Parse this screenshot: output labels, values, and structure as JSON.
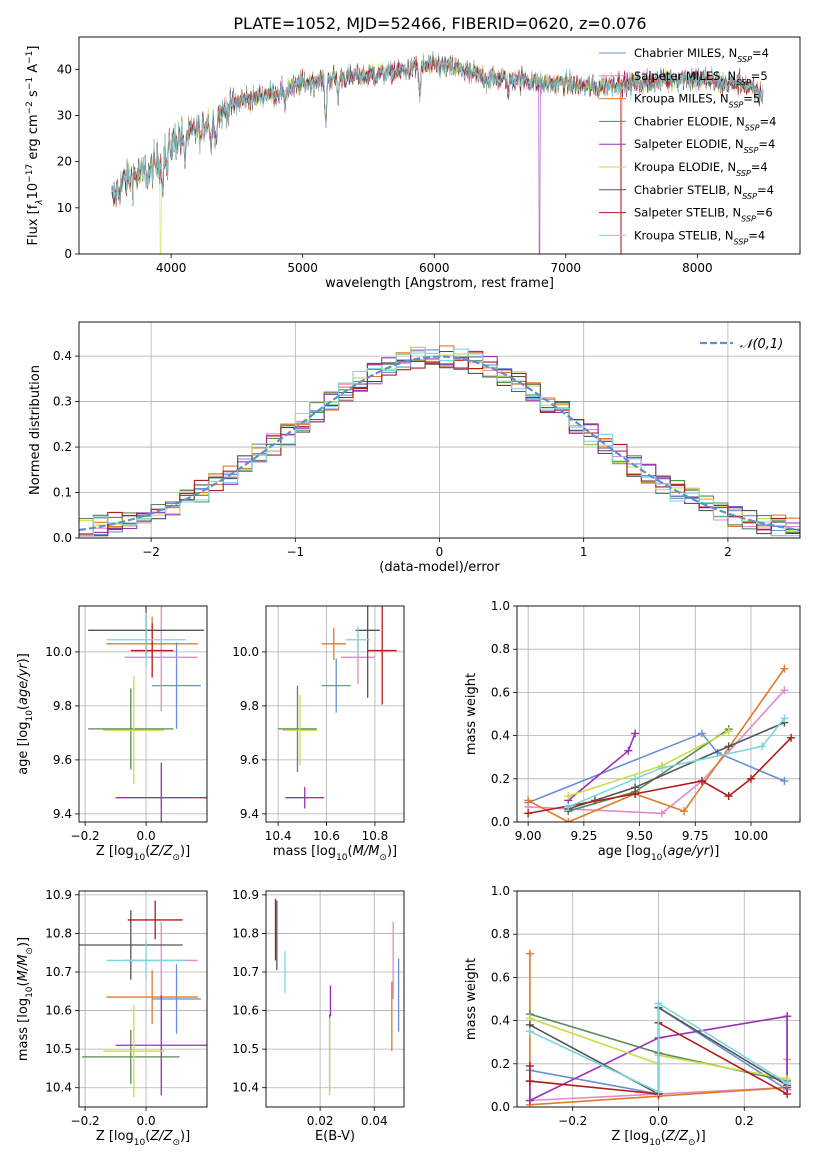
{
  "figure": {
    "title": "PLATE=1052, MJD=52466, FIBERID=0620, z=0.076"
  },
  "palette": {
    "Chabrier MILES": "#6b8fd6",
    "Salpeter MILES": "#e38ac8",
    "Kroupa MILES": "#e07b28",
    "Chabrier ELODIE": "#5a8a5a",
    "Salpeter ELODIE": "#9b30b8",
    "Kroupa ELODIE": "#c7de4a",
    "Chabrier STELIB": "#555555",
    "Salpeter STELIB": "#b01c1c",
    "Kroupa STELIB": "#7dd6de",
    "normal": "#5b8fd6",
    "grid": "#b0b0b0"
  },
  "chart_data": [
    {
      "id": "spectrum",
      "type": "line",
      "xlabel": "wavelength [Angstrom, rest frame]",
      "ylabel_parts": [
        "Flux [f",
        "λ",
        "10",
        "−17",
        " erg cm",
        "−2",
        " s",
        "−1",
        " A",
        "−1",
        "]"
      ],
      "xlim": [
        3300,
        8780
      ],
      "ylim": [
        0,
        47
      ],
      "xticks": [
        4000,
        5000,
        6000,
        7000,
        8000
      ],
      "yticks": [
        0,
        10,
        20,
        30,
        40
      ],
      "grid": false,
      "legend_position": "right",
      "continuum": [
        [
          3550,
          12
        ],
        [
          3650,
          16
        ],
        [
          3750,
          17
        ],
        [
          3850,
          18
        ],
        [
          3950,
          22
        ],
        [
          4050,
          25
        ],
        [
          4200,
          27
        ],
        [
          4350,
          30
        ],
        [
          4500,
          33
        ],
        [
          4650,
          34
        ],
        [
          4800,
          35
        ],
        [
          5000,
          37
        ],
        [
          5200,
          38
        ],
        [
          5400,
          38.5
        ],
        [
          5600,
          39
        ],
        [
          5800,
          40
        ],
        [
          6000,
          41
        ],
        [
          6200,
          40
        ],
        [
          6400,
          38
        ],
        [
          6600,
          38
        ],
        [
          6800,
          37
        ],
        [
          7000,
          37
        ],
        [
          7200,
          36
        ],
        [
          7400,
          37
        ],
        [
          7600,
          37
        ],
        [
          7800,
          38
        ],
        [
          8000,
          38
        ],
        [
          8200,
          37
        ],
        [
          8350,
          37
        ],
        [
          8450,
          35
        ],
        [
          8500,
          34
        ]
      ],
      "absorption": [
        [
          3934,
          6
        ],
        [
          3969,
          5
        ],
        [
          4102,
          6
        ],
        [
          4227,
          3
        ],
        [
          4304,
          6
        ],
        [
          4340,
          5
        ],
        [
          4861,
          4
        ],
        [
          5175,
          10
        ],
        [
          5270,
          4
        ],
        [
          5890,
          6
        ],
        [
          6563,
          3
        ]
      ],
      "dropouts": [
        [
          3920,
          "Kroupa ELODIE"
        ],
        [
          6800,
          "Salpeter ELODIE"
        ],
        [
          7420,
          "Salpeter STELIB"
        ]
      ],
      "series": [
        {
          "name": "Chabrier MILES",
          "label": "Chabrier MILES, N",
          "sub": "SSP",
          "n": "=4"
        },
        {
          "name": "Salpeter MILES",
          "label": "Salpeter MILES, N",
          "sub": "SSP",
          "n": "=5"
        },
        {
          "name": "Kroupa MILES",
          "label": "Kroupa MILES, N",
          "sub": "SSP",
          "n": "=5"
        },
        {
          "name": "Chabrier ELODIE",
          "label": "Chabrier ELODIE, N",
          "sub": "SSP",
          "n": "=4"
        },
        {
          "name": "Salpeter ELODIE",
          "label": "Salpeter ELODIE, N",
          "sub": "SSP",
          "n": "=4"
        },
        {
          "name": "Kroupa ELODIE",
          "label": "Kroupa ELODIE, N",
          "sub": "SSP",
          "n": "=4"
        },
        {
          "name": "Chabrier STELIB",
          "label": "Chabrier STELIB, N",
          "sub": "SSP",
          "n": "=4"
        },
        {
          "name": "Salpeter STELIB",
          "label": "Salpeter STELIB, N",
          "sub": "SSP",
          "n": "=6"
        },
        {
          "name": "Kroupa STELIB",
          "label": "Kroupa STELIB, N",
          "sub": "SSP",
          "n": "=4"
        }
      ]
    },
    {
      "id": "residuals",
      "type": "line",
      "xlabel": "(data-model)/error",
      "ylabel": "Normed distribution",
      "xlim": [
        -2.5,
        2.5
      ],
      "ylim": [
        0,
        0.475
      ],
      "xticks": [
        -2,
        -1,
        0,
        1,
        2
      ],
      "yticks": [
        0.0,
        0.1,
        0.2,
        0.3,
        0.4
      ],
      "grid": true,
      "legend": "𝒩(0,1)",
      "legend_position": "top-right",
      "bin_width": 0.1,
      "bin_start": -2.5
    },
    {
      "id": "age-vs-Z",
      "type": "scatter",
      "xlabel": "Z [log10(Z/Z⊙)]",
      "ylabel": "age  [log10(age/yr)]",
      "xlim": [
        -0.22,
        0.2
      ],
      "ylim": [
        9.37,
        10.17
      ],
      "xticks": [
        -0.2,
        0.0
      ],
      "yticks": [
        9.4,
        9.6,
        9.8,
        10.0
      ],
      "grid": true,
      "points": [
        {
          "series": "Chabrier MILES",
          "x": 0.1,
          "xerr": 0.08,
          "y": 9.875,
          "yerr": 0.16
        },
        {
          "series": "Salpeter MILES",
          "x": 0.05,
          "xerr": 0.12,
          "y": 9.98,
          "yerr": 0.2
        },
        {
          "series": "Kroupa MILES",
          "x": 0.02,
          "xerr": 0.15,
          "y": 10.03,
          "yerr": 0.1
        },
        {
          "series": "Chabrier ELODIE",
          "x": -0.05,
          "xerr": 0.14,
          "y": 9.715,
          "yerr": 0.15
        },
        {
          "series": "Salpeter ELODIE",
          "x": 0.05,
          "xerr": 0.15,
          "y": 9.46,
          "yerr": 0.13
        },
        {
          "series": "Kroupa ELODIE",
          "x": -0.04,
          "xerr": 0.1,
          "y": 9.71,
          "yerr": 0.2
        },
        {
          "series": "Chabrier STELIB",
          "x": 0.0,
          "xerr": 0.19,
          "y": 10.08,
          "yerr": 0.1
        },
        {
          "series": "Salpeter STELIB",
          "x": 0.02,
          "xerr": 0.07,
          "y": 10.005,
          "yerr": 0.1
        },
        {
          "series": "Kroupa STELIB",
          "x": 0.0,
          "xerr": 0.13,
          "y": 10.045,
          "yerr": 0.1
        }
      ]
    },
    {
      "id": "age-vs-mass",
      "type": "scatter",
      "xlabel": "mass [log10(M/M⊙)]",
      "ylabel": "",
      "xlim": [
        10.35,
        10.92
      ],
      "ylim": [
        9.37,
        10.17
      ],
      "xticks": [
        10.4,
        10.6,
        10.8
      ],
      "yticks": [
        9.4,
        9.6,
        9.8,
        10.0
      ],
      "grid": true,
      "points": [
        {
          "series": "Chabrier MILES",
          "x": 10.64,
          "xerr": 0.06,
          "y": 9.875,
          "yerr": 0.1
        },
        {
          "series": "Salpeter MILES",
          "x": 10.73,
          "xerr": 0.07,
          "y": 9.98,
          "yerr": 0.1
        },
        {
          "series": "Kroupa MILES",
          "x": 10.63,
          "xerr": 0.05,
          "y": 10.03,
          "yerr": 0.06
        },
        {
          "series": "Chabrier ELODIE",
          "x": 10.48,
          "xerr": 0.08,
          "y": 9.715,
          "yerr": 0.16
        },
        {
          "series": "Salpeter ELODIE",
          "x": 10.51,
          "xerr": 0.08,
          "y": 9.46,
          "yerr": 0.04
        },
        {
          "series": "Kroupa ELODIE",
          "x": 10.49,
          "xerr": 0.07,
          "y": 9.71,
          "yerr": 0.13
        },
        {
          "series": "Chabrier STELIB",
          "x": 10.77,
          "xerr": 0.05,
          "y": 10.08,
          "yerr": 0.25
        },
        {
          "series": "Salpeter STELIB",
          "x": 10.83,
          "xerr": 0.06,
          "y": 10.005,
          "yerr": 0.2
        },
        {
          "series": "Kroupa STELIB",
          "x": 10.73,
          "xerr": 0.05,
          "y": 10.045,
          "yerr": 0.05
        }
      ]
    },
    {
      "id": "weight-vs-age",
      "type": "line",
      "xlabel": "age  [log10(age/yr)]",
      "ylabel": "mass weight",
      "xlim": [
        8.95,
        10.22
      ],
      "ylim": [
        0,
        1
      ],
      "xticks": [
        9.0,
        9.25,
        9.5,
        9.75,
        10.0
      ],
      "yticks": [
        0.0,
        0.2,
        0.4,
        0.6,
        0.8,
        1.0
      ],
      "grid": true,
      "series": [
        {
          "name": "Chabrier MILES",
          "points": [
            [
              9.0,
              0.09
            ],
            [
              9.78,
              0.41
            ],
            [
              9.85,
              0.32
            ],
            [
              10.15,
              0.19
            ]
          ]
        },
        {
          "name": "Salpeter MILES",
          "points": [
            [
              9.0,
              0.07
            ],
            [
              9.6,
              0.04
            ],
            [
              9.78,
              0.19
            ],
            [
              10.15,
              0.61
            ]
          ]
        },
        {
          "name": "Kroupa MILES",
          "points": [
            [
              9.0,
              0.1
            ],
            [
              9.18,
              0.0
            ],
            [
              9.48,
              0.13
            ],
            [
              9.7,
              0.05
            ],
            [
              10.15,
              0.71
            ]
          ]
        },
        {
          "name": "Chabrier ELODIE",
          "points": [
            [
              9.18,
              0.05
            ],
            [
              9.48,
              0.14
            ],
            [
              9.9,
              0.43
            ]
          ]
        },
        {
          "name": "Salpeter ELODIE",
          "points": [
            [
              9.18,
              0.1
            ],
            [
              9.45,
              0.33
            ],
            [
              9.48,
              0.41
            ]
          ]
        },
        {
          "name": "Kroupa ELODIE",
          "points": [
            [
              9.18,
              0.12
            ],
            [
              9.6,
              0.26
            ],
            [
              9.9,
              0.42
            ]
          ]
        },
        {
          "name": "Chabrier STELIB",
          "points": [
            [
              9.18,
              0.06
            ],
            [
              9.3,
              0.1
            ],
            [
              9.48,
              0.16
            ],
            [
              9.9,
              0.35
            ],
            [
              10.15,
              0.46
            ]
          ]
        },
        {
          "name": "Salpeter STELIB",
          "points": [
            [
              9.0,
              0.04
            ],
            [
              9.48,
              0.13
            ],
            [
              9.78,
              0.19
            ],
            [
              9.9,
              0.12
            ],
            [
              10.0,
              0.2
            ],
            [
              10.18,
              0.39
            ]
          ]
        },
        {
          "name": "Kroupa STELIB",
          "points": [
            [
              9.18,
              0.07
            ],
            [
              9.48,
              0.2
            ],
            [
              9.6,
              0.25
            ],
            [
              10.05,
              0.35
            ],
            [
              10.15,
              0.48
            ]
          ]
        }
      ]
    },
    {
      "id": "mass-vs-Z",
      "type": "scatter",
      "xlabel": "Z [log10(Z/Z⊙)]",
      "ylabel": "mass [log10(M/M⊙)]",
      "xlim": [
        -0.22,
        0.2
      ],
      "ylim": [
        10.35,
        10.91
      ],
      "xticks": [
        -0.2,
        0.0
      ],
      "yticks": [
        10.4,
        10.5,
        10.6,
        10.7,
        10.8,
        10.9
      ],
      "grid": true,
      "points": [
        {
          "series": "Chabrier MILES",
          "x": 0.1,
          "xerr": 0.08,
          "y": 10.63,
          "yerr": 0.09
        },
        {
          "series": "Salpeter MILES",
          "x": 0.05,
          "xerr": 0.12,
          "y": 10.73,
          "yerr": 0.1
        },
        {
          "series": "Kroupa MILES",
          "x": 0.02,
          "xerr": 0.15,
          "y": 10.635,
          "yerr": 0.07
        },
        {
          "series": "Chabrier ELODIE",
          "x": -0.05,
          "xerr": 0.16,
          "y": 10.48,
          "yerr": 0.07
        },
        {
          "series": "Salpeter ELODIE",
          "x": 0.05,
          "xerr": 0.15,
          "y": 10.51,
          "yerr": 0.13
        },
        {
          "series": "Kroupa ELODIE",
          "x": -0.04,
          "xerr": 0.1,
          "y": 10.495,
          "yerr": 0.12
        },
        {
          "series": "Chabrier STELIB",
          "x": -0.05,
          "xerr": 0.17,
          "y": 10.77,
          "yerr": 0.09
        },
        {
          "series": "Salpeter STELIB",
          "x": 0.03,
          "xerr": 0.09,
          "y": 10.835,
          "yerr": 0.05
        },
        {
          "series": "Kroupa STELIB",
          "x": 0.0,
          "xerr": 0.13,
          "y": 10.73,
          "yerr": 0.05
        }
      ]
    },
    {
      "id": "mass-vs-ebv",
      "type": "scatter",
      "xlabel": "E(B-V)",
      "ylabel": "",
      "xlim": [
        0.0,
        0.051
      ],
      "ylim": [
        10.35,
        10.91
      ],
      "xticks": [
        0.02,
        0.04
      ],
      "yticks": [
        10.4,
        10.5,
        10.6,
        10.7,
        10.8,
        10.9
      ],
      "grid": true,
      "points": [
        {
          "series": "Chabrier MILES",
          "x": 0.049,
          "y": 10.64,
          "yerr": 0.095
        },
        {
          "series": "Salpeter MILES",
          "x": 0.047,
          "y": 10.73,
          "yerr": 0.1
        },
        {
          "series": "Kroupa MILES",
          "x": 0.0465,
          "y": 10.585,
          "yerr": 0.09
        },
        {
          "series": "Chabrier ELODIE",
          "x": 0.0235,
          "y": 10.49,
          "yerr": 0.1
        },
        {
          "series": "Salpeter ELODIE",
          "x": 0.0238,
          "y": 10.625,
          "yerr": 0.04
        },
        {
          "series": "Kroupa ELODIE",
          "x": 0.0235,
          "y": 10.48,
          "yerr": 0.1
        },
        {
          "series": "Chabrier STELIB",
          "x": 0.004,
          "y": 10.795,
          "yerr": 0.09
        },
        {
          "series": "Salpeter STELIB",
          "x": 0.0035,
          "y": 10.81,
          "yerr": 0.08
        },
        {
          "series": "Kroupa STELIB",
          "x": 0.007,
          "y": 10.7,
          "yerr": 0.055
        }
      ]
    },
    {
      "id": "weight-vs-Z",
      "type": "line",
      "xlabel": "Z [log10(Z/Z⊙)]",
      "ylabel": "mass weight",
      "xlim": [
        -0.33,
        0.33
      ],
      "ylim": [
        0,
        1
      ],
      "xticks": [
        -0.2,
        0.0,
        0.2
      ],
      "yticks": [
        0.0,
        0.2,
        0.4,
        0.6,
        0.8,
        1.0
      ],
      "grid": true,
      "series": [
        {
          "name": "Chabrier MILES",
          "points": [
            [
              -0.3,
              0.17
            ],
            [
              0.0,
              0.06
            ],
            [
              0.0,
              0.46
            ],
            [
              0.3,
              0.08
            ],
            [
              0.3,
              0.42
            ],
            [
              0.3,
              0.09
            ]
          ]
        },
        {
          "name": "Salpeter MILES",
          "points": [
            [
              -0.3,
              0.03
            ],
            [
              0.3,
              0.09
            ],
            [
              0.3,
              0.22
            ],
            [
              0.3,
              0.08
            ]
          ]
        },
        {
          "name": "Kroupa MILES",
          "points": [
            [
              -0.3,
              0.71
            ],
            [
              -0.3,
              0.01
            ],
            [
              0.0,
              0.05
            ],
            [
              0.3,
              0.09
            ]
          ]
        },
        {
          "name": "Chabrier ELODIE",
          "points": [
            [
              -0.3,
              0.43
            ],
            [
              0.0,
              0.25
            ],
            [
              0.3,
              0.12
            ]
          ]
        },
        {
          "name": "Salpeter ELODIE",
          "points": [
            [
              -0.3,
              0.12
            ],
            [
              -0.3,
              0.03
            ],
            [
              0.0,
              0.32
            ],
            [
              0.3,
              0.42
            ],
            [
              0.3,
              0.09
            ]
          ]
        },
        {
          "name": "Kroupa ELODIE",
          "points": [
            [
              -0.3,
              0.41
            ],
            [
              0.0,
              0.2
            ],
            [
              0.0,
              0.24
            ],
            [
              0.3,
              0.13
            ]
          ]
        },
        {
          "name": "Chabrier STELIB",
          "points": [
            [
              -0.3,
              0.38
            ],
            [
              0.0,
              0.06
            ],
            [
              0.0,
              0.46
            ],
            [
              0.3,
              0.1
            ]
          ]
        },
        {
          "name": "Salpeter STELIB",
          "points": [
            [
              -0.3,
              0.19
            ],
            [
              -0.3,
              0.12
            ],
            [
              0.0,
              0.06
            ],
            [
              0.0,
              0.39
            ],
            [
              0.3,
              0.06
            ]
          ]
        },
        {
          "name": "Kroupa STELIB",
          "points": [
            [
              -0.3,
              0.35
            ],
            [
              0.0,
              0.07
            ],
            [
              0.0,
              0.48
            ],
            [
              0.3,
              0.11
            ]
          ]
        }
      ]
    }
  ]
}
